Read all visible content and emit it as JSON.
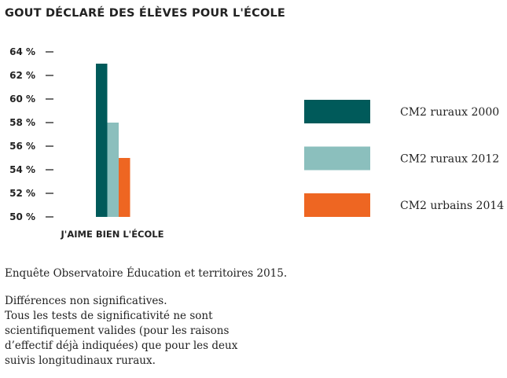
{
  "chart_data": {
    "type": "bar",
    "title": "GOUT DÉCLARÉ DES ÉLÈVES POUR L'ÉCOLE",
    "categories": [
      "J'AIME BIEN L'ÉCOLE"
    ],
    "series": [
      {
        "name": "CM2 ruraux 2000",
        "values": [
          63
        ],
        "color": "#005a5a"
      },
      {
        "name": "CM2 ruraux 2012",
        "values": [
          58
        ],
        "color": "#8bbfbd"
      },
      {
        "name": "CM2 urbains 2014",
        "values": [
          55
        ],
        "color": "#ee6622"
      }
    ],
    "ylim": [
      50,
      64
    ],
    "yticks": [
      "50 %",
      "52 %",
      "54 %",
      "56 %",
      "58 %",
      "60 %",
      "62 %",
      "64 %"
    ],
    "legend": "right",
    "grid": false
  },
  "notes": {
    "source": "Enquête Observatoire Éducation et territoires 2015.",
    "lines": [
      "Différences non significatives.",
      "Tous les tests de significativité ne sont",
      "scientifiquement valides (pour les raisons",
      "d’effectif déjà indiquées) que pour les deux",
      "suivis longitudinaux ruraux."
    ]
  }
}
